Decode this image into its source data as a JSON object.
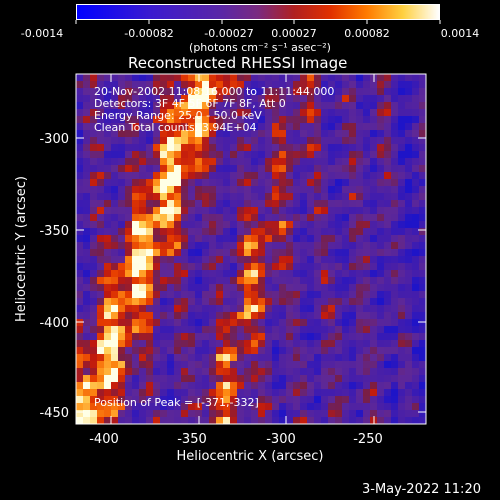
{
  "colorbar": {
    "ticks": [
      "-0.0014",
      "-0.00082",
      "-0.00027",
      "0.00027",
      "0.00082",
      "0.0014"
    ],
    "unit_label": "(photons cm⁻² s⁻¹ asec⁻²)"
  },
  "plot": {
    "title": "Reconstructed RHESSI Image",
    "xlabel": "Heliocentric X (arcsec)",
    "ylabel": "Heliocentric Y (arcsec)",
    "xticks": [
      "-400",
      "-350",
      "-300",
      "-250"
    ],
    "yticks": [
      "-300",
      "-350",
      "-400",
      "-450"
    ],
    "xrange": [
      -415,
      -225
    ],
    "yrange": [
      -456,
      -270
    ],
    "info": [
      "20-Nov-2002 11:08:16.000 to 11:11:44.000",
      "Detectors: 3F 4F 5F 6F 7F 8F, Att 0",
      "Energy Range: 25.0 - 50.0 keV",
      "Clean     Total counts: 3.94E+04"
    ],
    "peak_label": "Position of Peak = [-371,-332]"
  },
  "timestamp": "3-May-2022 11:20"
}
